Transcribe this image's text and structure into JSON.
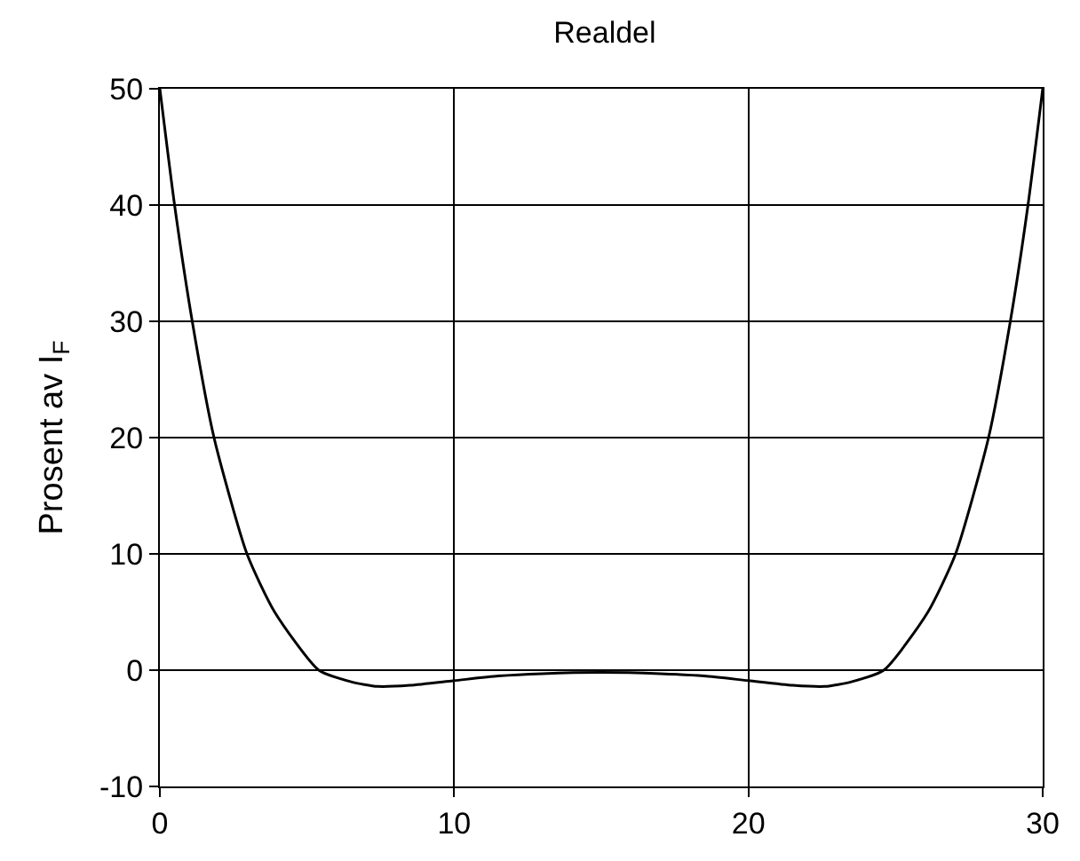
{
  "chart_data": {
    "type": "line",
    "title": "Realdel",
    "ylabel": "Prosent av I$_{F}$",
    "x": [
      0,
      0.5,
      1.1,
      1.84,
      2.96,
      3.9,
      5.4,
      6.5,
      7.4,
      8.5,
      10,
      11.5,
      13,
      15,
      17,
      18.5,
      20,
      21.5,
      22.6,
      23.5,
      24.6,
      26.1,
      27.04,
      28.16,
      28.9,
      29.5,
      30
    ],
    "series": [
      {
        "color": "#000000",
        "values": [
          50,
          40,
          30,
          20,
          10,
          5,
          0,
          -1.0,
          -1.4,
          -1.3,
          -0.9,
          -0.5,
          -0.3,
          -0.2,
          -0.3,
          -0.5,
          -0.9,
          -1.3,
          -1.4,
          -1.0,
          0,
          5,
          10,
          20,
          30,
          40,
          50
        ]
      }
    ],
    "xlim": [
      0,
      30
    ],
    "xticks": [
      0,
      10,
      20,
      30
    ],
    "ylim": [
      -10,
      50
    ],
    "yticks": [
      -10,
      0,
      10,
      20,
      30,
      40,
      50
    ],
    "grid": true,
    "marker": "none",
    "line_style": "solid"
  }
}
